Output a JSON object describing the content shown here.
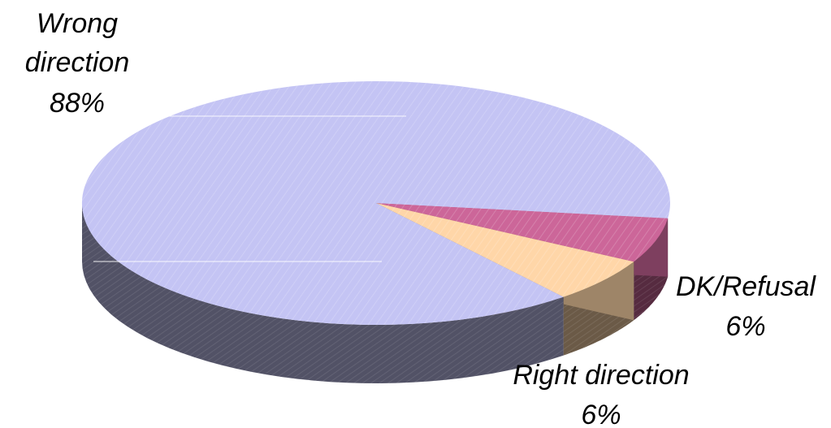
{
  "chart_data": {
    "type": "pie",
    "categories": [
      "Wrong direction",
      "DK/Refusal",
      "Right direction"
    ],
    "values": [
      88,
      6,
      6
    ],
    "labels": {
      "wrong_name_line1": "Wrong",
      "wrong_name_line2": "direction",
      "wrong_pct": "88%",
      "dk_name": "DK/Refusal",
      "dk_pct": "6%",
      "right_name": "Right direction",
      "right_pct": "6%"
    },
    "colors": {
      "Wrong direction": "#c4c4f4",
      "DK/Refusal": "#cc6699",
      "Right direction": "#ffd6a8"
    },
    "style": "3d-exploded-pie"
  }
}
